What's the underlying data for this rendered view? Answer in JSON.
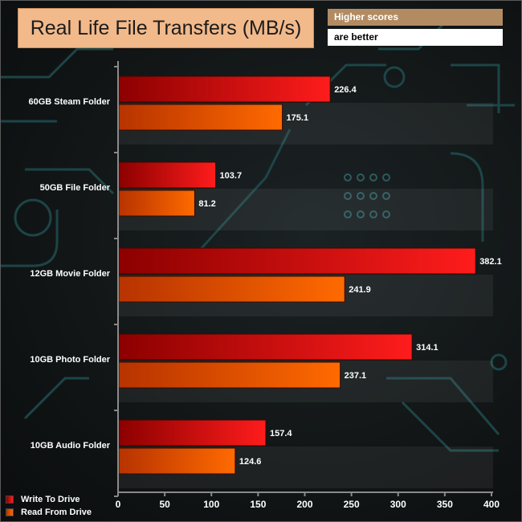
{
  "header": {
    "title": "Real Life File Transfers (MB/s)",
    "note_line1": "Higher scores",
    "note_line2": "are better"
  },
  "legend": {
    "write_label": "Write To  Drive",
    "read_label": "Read From  Drive"
  },
  "chart_data": {
    "type": "bar",
    "orientation": "horizontal",
    "title": "Real Life File Transfers (MB/s)",
    "categories": [
      "60GB Steam Folder",
      "50GB File Folder",
      "12GB Movie Folder",
      "10GB Photo Folder",
      "10GB Audio Folder"
    ],
    "series": [
      {
        "name": "Write To  Drive",
        "values": [
          226.4,
          103.7,
          382.1,
          314.1,
          157.4
        ],
        "color_dark": "#8c0000",
        "color_light": "#ff1c1c"
      },
      {
        "name": "Read From  Drive",
        "values": [
          175.1,
          81.2,
          241.9,
          237.1,
          124.6
        ],
        "color_dark": "#b73300",
        "color_light": "#ff6a00"
      }
    ],
    "xlim": [
      0,
      400
    ],
    "xticks": [
      0,
      50,
      100,
      150,
      200,
      250,
      300,
      350,
      400
    ],
    "xlabel": "",
    "ylabel": "",
    "grid": false,
    "legend_position": "bottom-left"
  }
}
